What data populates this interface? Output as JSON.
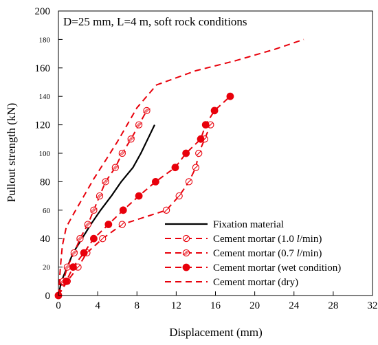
{
  "chart_data": {
    "type": "line",
    "annotation": "D=25 mm, L=4 m, soft rock conditions",
    "xlabel": "Displacement (mm)",
    "ylabel": "Pullout strength (kN)",
    "xlim": [
      0,
      32
    ],
    "ylim": [
      0,
      200
    ],
    "x_ticks": [
      0,
      4,
      8,
      12,
      16,
      20,
      24,
      28,
      32
    ],
    "x_tick_labels": [
      "0",
      "4",
      "8",
      "12",
      "16",
      "20",
      "24",
      "28",
      "32"
    ],
    "y_ticks": [
      0,
      20,
      40,
      60,
      80,
      100,
      120,
      140,
      160,
      180,
      200
    ],
    "y_tick_labels": [
      "0",
      "20",
      "40",
      "60",
      "80",
      "100",
      "120",
      "140",
      "160",
      "180",
      "200"
    ],
    "y_major_ticks": [
      0,
      40,
      80,
      120,
      160,
      200
    ],
    "grid": false,
    "legend_position": "bottom-right",
    "accent_color": "#e8000b",
    "series": [
      {
        "name": "Fixation material",
        "legend_label": "Fixation material",
        "color": "#000000",
        "style": "solid",
        "marker": "none",
        "points": [
          [
            0,
            0
          ],
          [
            0.3,
            10
          ],
          [
            0.9,
            20
          ],
          [
            1.5,
            30
          ],
          [
            2.4,
            40
          ],
          [
            3.3,
            50
          ],
          [
            4.3,
            60
          ],
          [
            5.4,
            70
          ],
          [
            6.4,
            80
          ],
          [
            7.6,
            90
          ],
          [
            8.4,
            100
          ],
          [
            9.1,
            110
          ],
          [
            9.8,
            120
          ]
        ]
      },
      {
        "name": "Cement mortar (1.0 l/min)",
        "legend_label": "Cement mortar (1.0 l/min)",
        "color": "#e8000b",
        "style": "dashed",
        "marker": "circle-slash",
        "points": [
          [
            0,
            0
          ],
          [
            0.9,
            10
          ],
          [
            2,
            20
          ],
          [
            2.9,
            30
          ],
          [
            4.5,
            40
          ],
          [
            6.5,
            50
          ],
          [
            11,
            60
          ],
          [
            12.3,
            70
          ],
          [
            13.3,
            80
          ],
          [
            14,
            90
          ],
          [
            14.3,
            100
          ],
          [
            14.9,
            110
          ],
          [
            15.5,
            120
          ]
        ]
      },
      {
        "name": "Cement mortar (0.7 l/min)",
        "legend_label": "Cement mortar (0.7 l/min)",
        "color": "#e8000b",
        "style": "dashed",
        "marker": "circle-hatch",
        "points": [
          [
            0,
            0
          ],
          [
            0.5,
            10
          ],
          [
            0.9,
            20
          ],
          [
            1.6,
            30
          ],
          [
            2.2,
            40
          ],
          [
            3,
            50
          ],
          [
            3.6,
            60
          ],
          [
            4.2,
            70
          ],
          [
            4.8,
            80
          ],
          [
            5.8,
            90
          ],
          [
            6.5,
            100
          ],
          [
            7.4,
            110
          ],
          [
            8.2,
            120
          ],
          [
            9,
            130
          ]
        ]
      },
      {
        "name": "Cement mortar (wet condition)",
        "legend_label": "Cement mortar (wet condition)",
        "color": "#e8000b",
        "style": "dashed",
        "marker": "circle-filled",
        "points": [
          [
            0,
            0
          ],
          [
            0.8,
            10
          ],
          [
            1.5,
            20
          ],
          [
            2.6,
            30
          ],
          [
            3.6,
            40
          ],
          [
            5.1,
            50
          ],
          [
            6.6,
            60
          ],
          [
            8.2,
            70
          ],
          [
            9.9,
            80
          ],
          [
            11.9,
            90
          ],
          [
            13,
            100
          ],
          [
            14.5,
            110
          ],
          [
            15,
            120
          ],
          [
            15.9,
            130
          ],
          [
            17.5,
            140
          ]
        ]
      },
      {
        "name": "Cement mortar (dry)",
        "legend_label": "Cement mortar (dry)",
        "color": "#e8000b",
        "style": "dashed",
        "marker": "none",
        "points": [
          [
            0,
            0
          ],
          [
            0.2,
            20
          ],
          [
            0.4,
            35
          ],
          [
            0.8,
            48
          ],
          [
            1.6,
            58
          ],
          [
            2.6,
            70
          ],
          [
            3.6,
            82
          ],
          [
            4.8,
            95
          ],
          [
            6,
            108
          ],
          [
            7,
            120
          ],
          [
            8,
            132
          ],
          [
            9,
            140
          ],
          [
            10,
            148
          ],
          [
            14,
            158
          ],
          [
            18,
            165
          ],
          [
            22,
            173
          ],
          [
            25,
            180
          ]
        ]
      }
    ]
  }
}
